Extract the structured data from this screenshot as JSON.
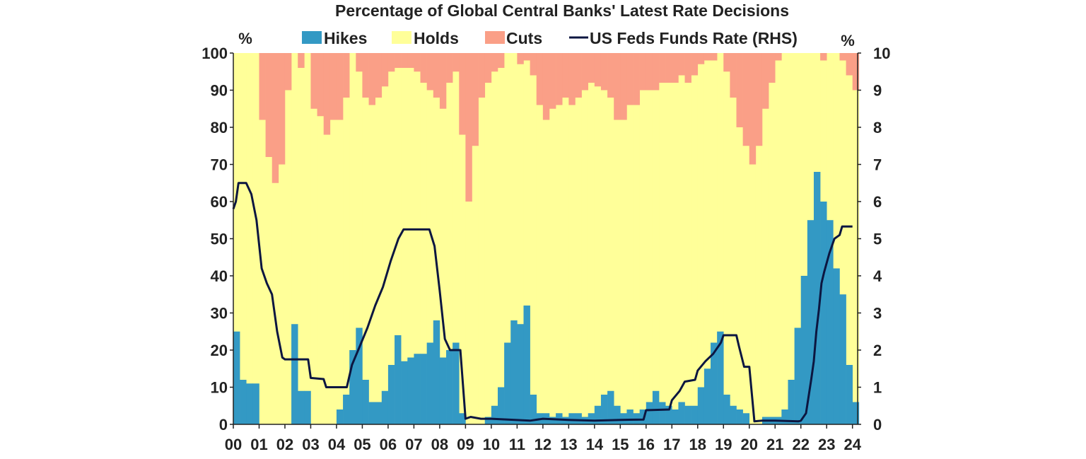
{
  "chart_data": {
    "type": "bar",
    "stacked": true,
    "title": "Percentage of Global Central Banks' Latest Rate Decisions",
    "left_unit": "%",
    "right_unit": "%",
    "x_range": [
      2000,
      2024.2
    ],
    "y_left_range": [
      0,
      100
    ],
    "y_right_range": [
      0,
      10
    ],
    "y_left_ticks": [
      0,
      10,
      20,
      30,
      40,
      50,
      60,
      70,
      80,
      90,
      100
    ],
    "y_right_ticks": [
      0,
      1,
      2,
      3,
      4,
      5,
      6,
      7,
      8,
      9,
      10
    ],
    "x_tick_labels": [
      "00",
      "01",
      "02",
      "03",
      "04",
      "05",
      "06",
      "07",
      "08",
      "09",
      "10",
      "11",
      "12",
      "13",
      "14",
      "15",
      "16",
      "17",
      "18",
      "19",
      "20",
      "21",
      "22",
      "23",
      "24"
    ],
    "grid": false,
    "legend_position": "top",
    "colors": {
      "hikes": "#3399c4",
      "holds": "#ffff99",
      "cuts": "#fa9f87",
      "fed": "#0c1640"
    },
    "series": [
      {
        "name": "Hikes",
        "kind": "bar",
        "points": [
          [
            2000.0,
            25
          ],
          [
            2000.25,
            12
          ],
          [
            2000.5,
            11
          ],
          [
            2000.75,
            11
          ],
          [
            2001.0,
            0
          ],
          [
            2001.25,
            0
          ],
          [
            2001.5,
            0
          ],
          [
            2001.75,
            0
          ],
          [
            2002.0,
            0
          ],
          [
            2002.25,
            27
          ],
          [
            2002.5,
            9
          ],
          [
            2002.75,
            9
          ],
          [
            2003.0,
            0
          ],
          [
            2003.25,
            0
          ],
          [
            2003.5,
            0
          ],
          [
            2003.75,
            0
          ],
          [
            2004.0,
            4
          ],
          [
            2004.25,
            8
          ],
          [
            2004.5,
            20
          ],
          [
            2004.75,
            26
          ],
          [
            2005.0,
            12
          ],
          [
            2005.25,
            6
          ],
          [
            2005.5,
            6
          ],
          [
            2005.75,
            9
          ],
          [
            2006.0,
            16
          ],
          [
            2006.25,
            24
          ],
          [
            2006.5,
            17
          ],
          [
            2006.75,
            18
          ],
          [
            2007.0,
            19
          ],
          [
            2007.25,
            19
          ],
          [
            2007.5,
            22
          ],
          [
            2007.75,
            28
          ],
          [
            2008.0,
            18
          ],
          [
            2008.25,
            20
          ],
          [
            2008.5,
            22
          ],
          [
            2008.75,
            3
          ],
          [
            2009.0,
            0
          ],
          [
            2009.25,
            0
          ],
          [
            2009.5,
            0
          ],
          [
            2009.75,
            2
          ],
          [
            2010.0,
            5
          ],
          [
            2010.25,
            10
          ],
          [
            2010.5,
            22
          ],
          [
            2010.75,
            28
          ],
          [
            2011.0,
            27
          ],
          [
            2011.25,
            32
          ],
          [
            2011.5,
            8
          ],
          [
            2011.75,
            3
          ],
          [
            2012.0,
            3
          ],
          [
            2012.25,
            2
          ],
          [
            2012.5,
            3
          ],
          [
            2012.75,
            2
          ],
          [
            2013.0,
            3
          ],
          [
            2013.25,
            3
          ],
          [
            2013.5,
            2
          ],
          [
            2013.75,
            3
          ],
          [
            2014.0,
            5
          ],
          [
            2014.25,
            8
          ],
          [
            2014.5,
            9
          ],
          [
            2014.75,
            5
          ],
          [
            2015.0,
            3
          ],
          [
            2015.25,
            4
          ],
          [
            2015.5,
            3
          ],
          [
            2015.75,
            4
          ],
          [
            2016.0,
            6
          ],
          [
            2016.25,
            9
          ],
          [
            2016.5,
            6
          ],
          [
            2016.75,
            5
          ],
          [
            2017.0,
            4
          ],
          [
            2017.25,
            6
          ],
          [
            2017.5,
            5
          ],
          [
            2017.75,
            5
          ],
          [
            2018.0,
            10
          ],
          [
            2018.25,
            15
          ],
          [
            2018.5,
            22
          ],
          [
            2018.75,
            25
          ],
          [
            2019.0,
            8
          ],
          [
            2019.25,
            5
          ],
          [
            2019.5,
            4
          ],
          [
            2019.75,
            3
          ],
          [
            2020.0,
            0
          ],
          [
            2020.25,
            0
          ],
          [
            2020.5,
            2
          ],
          [
            2020.75,
            2
          ],
          [
            2021.0,
            2
          ],
          [
            2021.25,
            4
          ],
          [
            2021.5,
            12
          ],
          [
            2021.75,
            26
          ],
          [
            2022.0,
            40
          ],
          [
            2022.25,
            55
          ],
          [
            2022.5,
            68
          ],
          [
            2022.75,
            60
          ],
          [
            2023.0,
            55
          ],
          [
            2023.25,
            42
          ],
          [
            2023.5,
            35
          ],
          [
            2023.75,
            16
          ],
          [
            2024.0,
            6
          ]
        ]
      },
      {
        "name": "Holds",
        "kind": "bar",
        "fill": "remainder"
      },
      {
        "name": "Cuts",
        "kind": "bar",
        "points": [
          [
            2000.0,
            0
          ],
          [
            2000.25,
            0
          ],
          [
            2000.5,
            0
          ],
          [
            2000.75,
            0
          ],
          [
            2001.0,
            18
          ],
          [
            2001.25,
            28
          ],
          [
            2001.5,
            35
          ],
          [
            2001.75,
            30
          ],
          [
            2002.0,
            10
          ],
          [
            2002.25,
            0
          ],
          [
            2002.5,
            4
          ],
          [
            2002.75,
            0
          ],
          [
            2003.0,
            15
          ],
          [
            2003.25,
            17
          ],
          [
            2003.5,
            22
          ],
          [
            2003.75,
            18
          ],
          [
            2004.0,
            18
          ],
          [
            2004.25,
            12
          ],
          [
            2004.5,
            0
          ],
          [
            2004.75,
            5
          ],
          [
            2005.0,
            12
          ],
          [
            2005.25,
            14
          ],
          [
            2005.5,
            12
          ],
          [
            2005.75,
            9
          ],
          [
            2006.0,
            5
          ],
          [
            2006.25,
            4
          ],
          [
            2006.5,
            4
          ],
          [
            2006.75,
            4
          ],
          [
            2007.0,
            5
          ],
          [
            2007.25,
            8
          ],
          [
            2007.5,
            10
          ],
          [
            2007.75,
            12
          ],
          [
            2008.0,
            15
          ],
          [
            2008.25,
            8
          ],
          [
            2008.5,
            5
          ],
          [
            2008.75,
            22
          ],
          [
            2009.0,
            40
          ],
          [
            2009.25,
            25
          ],
          [
            2009.5,
            12
          ],
          [
            2009.75,
            8
          ],
          [
            2010.0,
            5
          ],
          [
            2010.25,
            4
          ],
          [
            2010.5,
            0
          ],
          [
            2010.75,
            0
          ],
          [
            2011.0,
            3
          ],
          [
            2011.25,
            2
          ],
          [
            2011.5,
            6
          ],
          [
            2011.75,
            14
          ],
          [
            2012.0,
            18
          ],
          [
            2012.25,
            15
          ],
          [
            2012.5,
            14
          ],
          [
            2012.75,
            12
          ],
          [
            2013.0,
            14
          ],
          [
            2013.25,
            12
          ],
          [
            2013.5,
            10
          ],
          [
            2013.75,
            8
          ],
          [
            2014.0,
            9
          ],
          [
            2014.25,
            10
          ],
          [
            2014.5,
            12
          ],
          [
            2014.75,
            18
          ],
          [
            2015.0,
            18
          ],
          [
            2015.25,
            14
          ],
          [
            2015.5,
            14
          ],
          [
            2015.75,
            10
          ],
          [
            2016.0,
            10
          ],
          [
            2016.25,
            10
          ],
          [
            2016.5,
            8
          ],
          [
            2016.75,
            8
          ],
          [
            2017.0,
            8
          ],
          [
            2017.25,
            6
          ],
          [
            2017.5,
            8
          ],
          [
            2017.75,
            6
          ],
          [
            2018.0,
            3
          ],
          [
            2018.25,
            2
          ],
          [
            2018.5,
            2
          ],
          [
            2018.75,
            0
          ],
          [
            2019.0,
            5
          ],
          [
            2019.25,
            12
          ],
          [
            2019.5,
            20
          ],
          [
            2019.75,
            25
          ],
          [
            2020.0,
            30
          ],
          [
            2020.25,
            25
          ],
          [
            2020.5,
            15
          ],
          [
            2020.75,
            8
          ],
          [
            2021.0,
            2
          ],
          [
            2021.25,
            0
          ],
          [
            2021.5,
            0
          ],
          [
            2021.75,
            0
          ],
          [
            2022.0,
            0
          ],
          [
            2022.25,
            0
          ],
          [
            2022.5,
            0
          ],
          [
            2022.75,
            2
          ],
          [
            2023.0,
            0
          ],
          [
            2023.25,
            0
          ],
          [
            2023.5,
            2
          ],
          [
            2023.75,
            6
          ],
          [
            2024.0,
            10
          ]
        ]
      },
      {
        "name": "US Feds Funds Rate (RHS)",
        "kind": "line",
        "axis": "right",
        "points": [
          [
            2000.0,
            5.8
          ],
          [
            2000.1,
            6.0
          ],
          [
            2000.2,
            6.5
          ],
          [
            2000.5,
            6.5
          ],
          [
            2000.7,
            6.2
          ],
          [
            2000.9,
            5.5
          ],
          [
            2001.1,
            4.2
          ],
          [
            2001.3,
            3.8
          ],
          [
            2001.5,
            3.5
          ],
          [
            2001.7,
            2.5
          ],
          [
            2001.9,
            1.8
          ],
          [
            2002.0,
            1.75
          ],
          [
            2002.9,
            1.75
          ],
          [
            2003.0,
            1.25
          ],
          [
            2003.5,
            1.22
          ],
          [
            2003.6,
            1.0
          ],
          [
            2004.0,
            1.0
          ],
          [
            2004.4,
            1.0
          ],
          [
            2004.6,
            1.6
          ],
          [
            2004.9,
            2.1
          ],
          [
            2005.2,
            2.6
          ],
          [
            2005.5,
            3.2
          ],
          [
            2005.8,
            3.7
          ],
          [
            2006.1,
            4.4
          ],
          [
            2006.4,
            5.0
          ],
          [
            2006.6,
            5.25
          ],
          [
            2007.6,
            5.25
          ],
          [
            2007.8,
            4.8
          ],
          [
            2008.0,
            3.6
          ],
          [
            2008.2,
            2.3
          ],
          [
            2008.4,
            2.0
          ],
          [
            2008.8,
            2.0
          ],
          [
            2009.0,
            0.15
          ],
          [
            2009.2,
            0.2
          ],
          [
            2009.6,
            0.15
          ],
          [
            2010.0,
            0.15
          ],
          [
            2011.5,
            0.1
          ],
          [
            2012.0,
            0.15
          ],
          [
            2013.0,
            0.12
          ],
          [
            2014.0,
            0.1
          ],
          [
            2015.0,
            0.12
          ],
          [
            2015.9,
            0.13
          ],
          [
            2016.0,
            0.38
          ],
          [
            2016.9,
            0.4
          ],
          [
            2017.0,
            0.65
          ],
          [
            2017.3,
            0.9
          ],
          [
            2017.5,
            1.15
          ],
          [
            2017.9,
            1.2
          ],
          [
            2018.0,
            1.45
          ],
          [
            2018.3,
            1.7
          ],
          [
            2018.6,
            1.9
          ],
          [
            2018.9,
            2.2
          ],
          [
            2019.0,
            2.4
          ],
          [
            2019.5,
            2.4
          ],
          [
            2019.6,
            2.1
          ],
          [
            2019.8,
            1.55
          ],
          [
            2020.0,
            1.55
          ],
          [
            2020.2,
            0.08
          ],
          [
            2020.5,
            0.1
          ],
          [
            2021.0,
            0.1
          ],
          [
            2021.9,
            0.08
          ],
          [
            2022.0,
            0.1
          ],
          [
            2022.2,
            0.3
          ],
          [
            2022.4,
            1.2
          ],
          [
            2022.5,
            1.7
          ],
          [
            2022.6,
            2.5
          ],
          [
            2022.7,
            3.1
          ],
          [
            2022.8,
            3.8
          ],
          [
            2022.9,
            4.1
          ],
          [
            2023.1,
            4.6
          ],
          [
            2023.3,
            5.0
          ],
          [
            2023.5,
            5.1
          ],
          [
            2023.6,
            5.33
          ],
          [
            2024.0,
            5.33
          ]
        ]
      }
    ]
  }
}
